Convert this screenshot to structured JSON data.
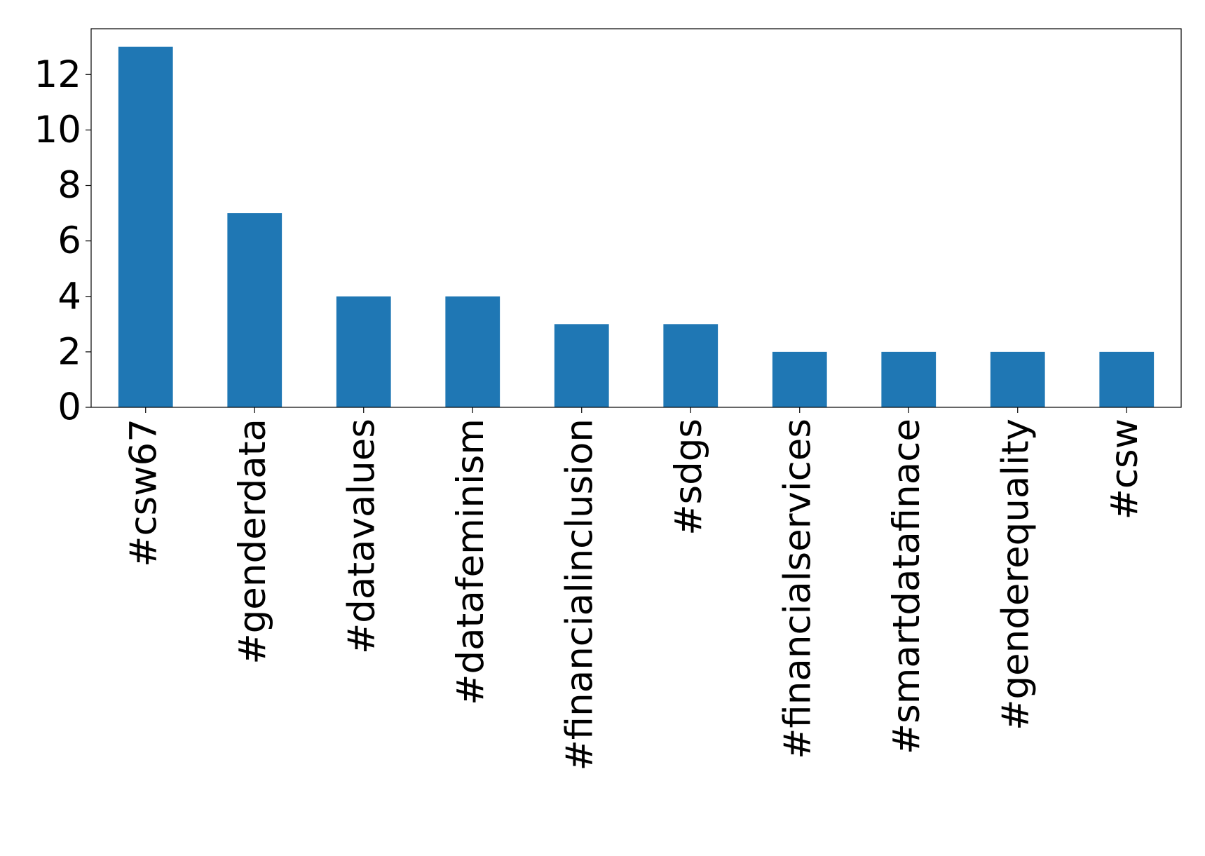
{
  "chart_data": {
    "type": "bar",
    "categories": [
      "#csw67",
      "#genderdata",
      "#datavalues",
      "#datafeminism",
      "#financialinclusion",
      "#sdgs",
      "#financialservices",
      "#smartdatafinace",
      "#genderequality",
      "#csw"
    ],
    "values": [
      13,
      7,
      4,
      4,
      3,
      3,
      2,
      2,
      2,
      2
    ],
    "color": "#1f77b4",
    "ylim": [
      0,
      13.65
    ],
    "yticks": [
      0,
      2,
      4,
      6,
      8,
      10,
      12
    ],
    "grid": false
  }
}
